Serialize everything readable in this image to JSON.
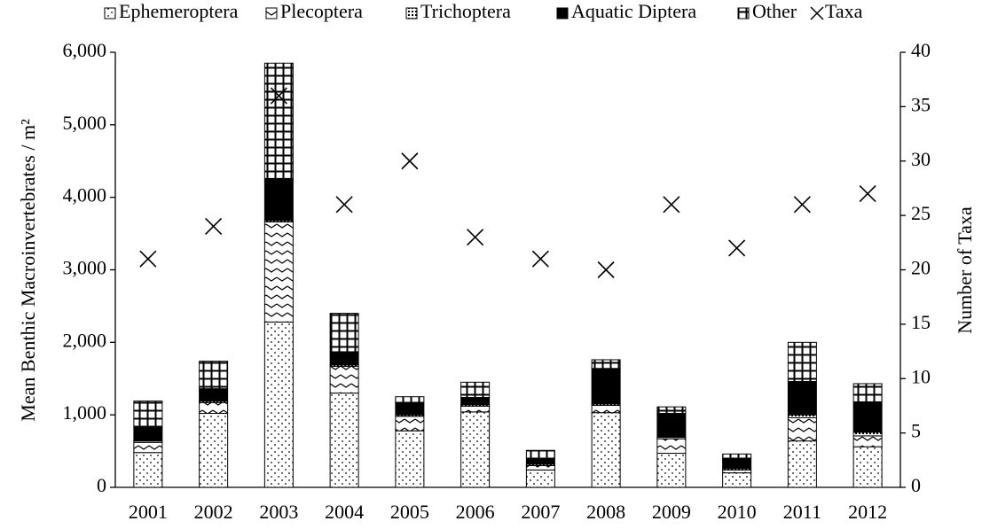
{
  "chart_data": {
    "type": "bar",
    "stacked": true,
    "ylabel": "Mean Benthic Macroinvertebrates / m²",
    "y2label": "Number of Taxa",
    "categories": [
      "2001",
      "2002",
      "2003",
      "2004",
      "2005",
      "2006",
      "2007",
      "2008",
      "2009",
      "2010",
      "2011",
      "2012"
    ],
    "series": [
      {
        "name": "Ephemeroptera",
        "color": "#000000",
        "pattern": "dots",
        "values": [
          480,
          1020,
          2280,
          1300,
          780,
          1040,
          240,
          1030,
          470,
          200,
          640,
          560
        ]
      },
      {
        "name": "Plecoptera",
        "color": "#000000",
        "pattern": "zigzag",
        "values": [
          140,
          150,
          1380,
          370,
          200,
          80,
          60,
          100,
          200,
          40,
          320,
          150
        ]
      },
      {
        "name": "Trichoptera",
        "color": "#000000",
        "pattern": "dense",
        "values": [
          20,
          20,
          20,
          20,
          20,
          20,
          20,
          20,
          20,
          20,
          40,
          50
        ]
      },
      {
        "name": "Aquatic Diptera",
        "color": "#000000",
        "pattern": "solid",
        "values": [
          190,
          170,
          580,
          180,
          150,
          100,
          80,
          490,
          330,
          120,
          460,
          420
        ]
      },
      {
        "name": "Other",
        "color": "#000000",
        "pattern": "grid",
        "values": [
          360,
          380,
          1590,
          530,
          100,
          210,
          110,
          120,
          90,
          80,
          540,
          250
        ]
      },
      {
        "name": "Taxa",
        "color": "#000000",
        "axis": "y2",
        "marker": "x",
        "values": [
          21,
          24,
          36,
          26,
          30,
          23,
          21,
          20,
          26,
          22,
          26,
          27
        ]
      }
    ],
    "ylim": [
      0,
      6000
    ],
    "yticks": [
      0,
      {
        "value": 1000,
        "label": "1,000"
      },
      {
        "value": 2000,
        "label": "2,000"
      },
      {
        "value": 3000,
        "label": "3,000"
      },
      {
        "value": 4000,
        "label": "4,000"
      },
      {
        "value": 5000,
        "label": "5,000"
      },
      {
        "value": 6000,
        "label": "6,000"
      }
    ],
    "y2lim": [
      0,
      40
    ],
    "y2ticks": [
      0,
      5,
      10,
      15,
      20,
      25,
      30,
      35,
      40
    ],
    "grid": false,
    "legend": "top"
  }
}
